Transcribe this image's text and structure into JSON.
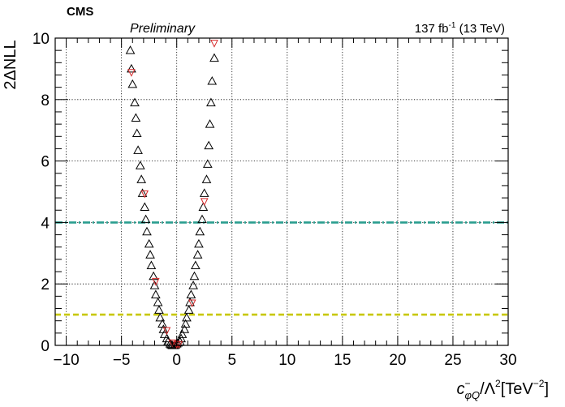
{
  "header": {
    "experiment": "CMS",
    "status": "Preliminary",
    "lumi_prefix": "137 fb",
    "lumi_exp": "-1",
    "lumi_suffix": " (13 TeV)"
  },
  "chart_data": {
    "type": "scatter",
    "title": "",
    "ylabel": "2ΔNLL",
    "xlabel": {
      "symbol": "c",
      "sup": "−",
      "sub": "φQ",
      "middle": "/Λ",
      "middle_sup": "2",
      "unit": "[TeV",
      "unit_sup": "−2",
      "unit_end": "]"
    },
    "xlim": [
      -11,
      30
    ],
    "ylim": [
      0,
      10
    ],
    "x_ticks": [
      -10,
      -5,
      0,
      5,
      10,
      15,
      20,
      25,
      30
    ],
    "x_tick_labels": [
      "−10",
      "−5",
      "0",
      "5",
      "10",
      "15",
      "20",
      "25",
      "30"
    ],
    "y_ticks": [
      0,
      2,
      4,
      6,
      8,
      10
    ],
    "y_tick_labels": [
      "0",
      "2",
      "4",
      "6",
      "8",
      "10"
    ],
    "grid": true,
    "reference_lines": [
      {
        "y": 4,
        "color": "#2a9d8f",
        "style": "dash-dot"
      },
      {
        "y": 1,
        "color": "#c8c800",
        "style": "dashed"
      }
    ],
    "series": [
      {
        "marker": "triangle-up-open",
        "color": "#000000",
        "x": [
          -4.2,
          -4.1,
          -4.0,
          -3.8,
          -3.7,
          -3.6,
          -3.5,
          -3.3,
          -3.2,
          -3.1,
          -2.9,
          -2.8,
          -2.7,
          -2.5,
          -2.4,
          -2.3,
          -2.1,
          -2.0,
          -1.9,
          -1.7,
          -1.6,
          -1.5,
          -1.3,
          -1.2,
          -1.1,
          -0.9,
          -0.8,
          -0.6,
          -0.5,
          -0.4,
          -0.2,
          -0.1,
          0.0,
          0.1,
          0.3,
          0.4,
          0.5,
          0.7,
          0.8,
          0.9,
          1.1,
          1.2,
          1.3,
          1.5,
          1.6,
          1.7,
          1.9,
          2.0,
          2.1,
          2.3,
          2.4,
          2.5,
          2.7,
          2.8,
          2.9,
          3.0,
          3.1,
          3.2,
          3.4
        ],
        "y": [
          9.6,
          9.0,
          8.5,
          7.9,
          7.4,
          6.9,
          6.35,
          5.85,
          5.4,
          4.95,
          4.5,
          4.1,
          3.7,
          3.3,
          2.95,
          2.6,
          2.25,
          1.95,
          1.65,
          1.4,
          1.15,
          0.9,
          0.7,
          0.52,
          0.36,
          0.22,
          0.12,
          0.05,
          0.02,
          0.0,
          0.0,
          0.02,
          0.05,
          0.08,
          0.12,
          0.22,
          0.36,
          0.52,
          0.7,
          0.9,
          1.15,
          1.4,
          1.65,
          1.95,
          2.25,
          2.6,
          2.95,
          3.3,
          3.7,
          4.1,
          4.5,
          4.95,
          5.4,
          5.9,
          6.5,
          7.2,
          7.9,
          8.6,
          9.35
        ]
      },
      {
        "marker": "triangle-down-open",
        "color": "#d62728",
        "x": [
          -4.1,
          -2.9,
          -1.9,
          -0.9,
          -0.4,
          0.0,
          0.2,
          1.4,
          2.5,
          3.4
        ],
        "y": [
          8.9,
          4.95,
          2.1,
          0.5,
          0.1,
          0.05,
          0.05,
          1.4,
          4.7,
          9.85
        ]
      }
    ]
  }
}
